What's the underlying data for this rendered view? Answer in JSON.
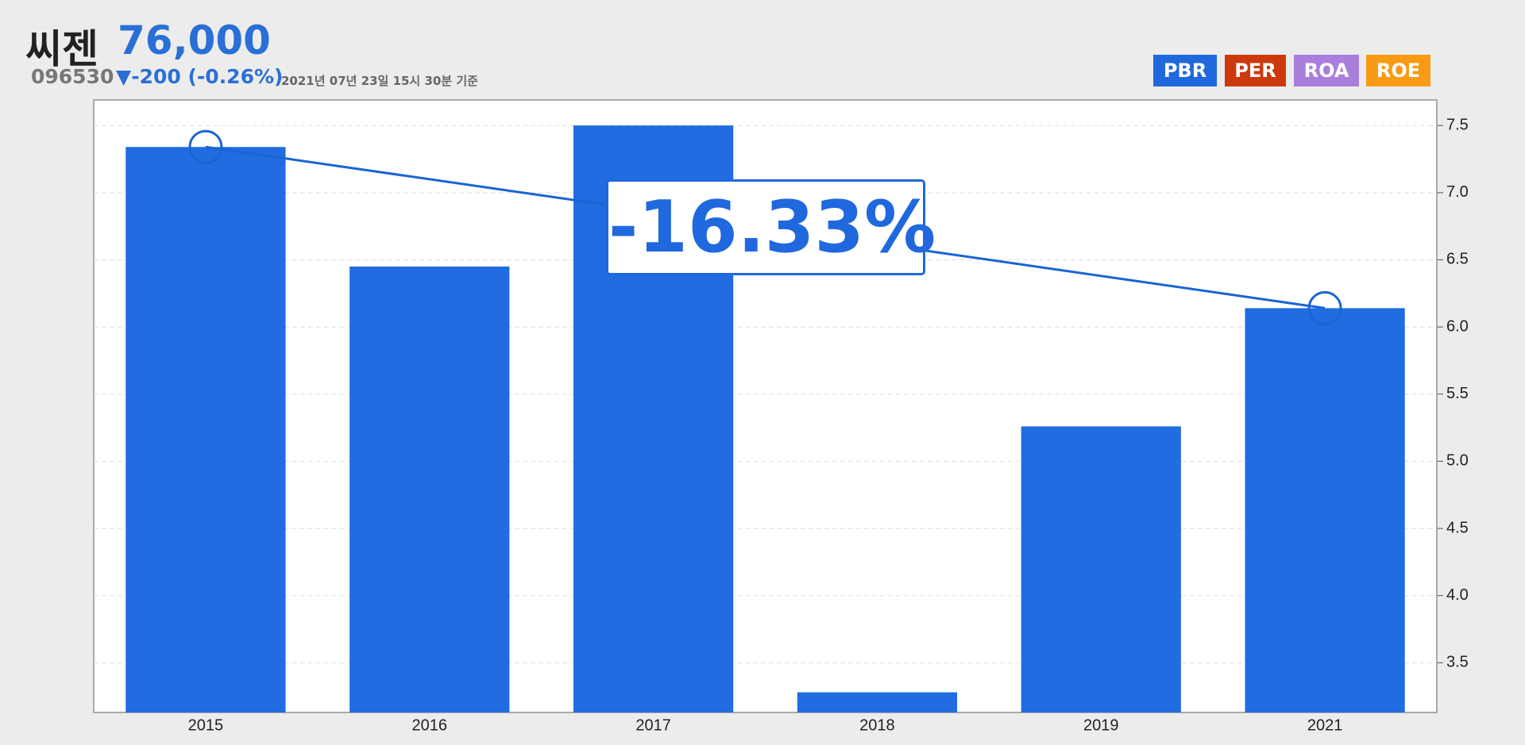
{
  "chart_data": {
    "type": "bar",
    "name": "씨젠",
    "price": "76,000",
    "code": "096530",
    "change": "▼-200 (-0.26%)",
    "timestamp": "2021년 07년 23일 15시 30분 기준",
    "buttons": [
      {
        "label": "PBR",
        "color": "#2068de"
      },
      {
        "label": "PER",
        "color": "#cc3a0c"
      },
      {
        "label": "ROA",
        "color": "#a97fdc"
      },
      {
        "label": "ROE",
        "color": "#f89a13"
      }
    ],
    "annotation": "-16.33%",
    "categories": [
      "2015",
      "2016",
      "2017",
      "2018",
      "2019",
      "2021"
    ],
    "values": [
      7.34,
      6.45,
      7.5,
      3.28,
      5.26,
      6.14
    ],
    "color": "#206ce0",
    "ylim": [
      3.13,
      7.69
    ],
    "yticks": [
      3.5,
      {
        "value": 4,
        "label": "4.0"
      },
      4.5,
      {
        "value": 5,
        "label": "5.0"
      },
      5.5,
      {
        "value": 6,
        "label": "6.0"
      },
      6.5,
      {
        "value": 7,
        "label": "7.0"
      },
      7.5
    ],
    "grid": true
  }
}
